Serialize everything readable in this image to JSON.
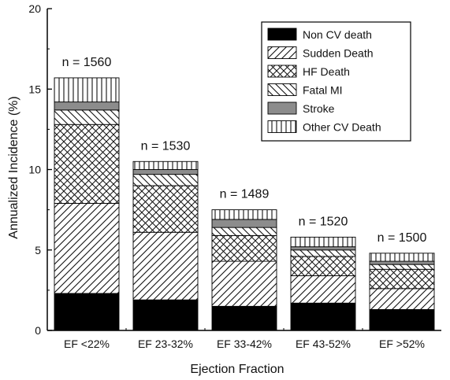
{
  "chart_data": {
    "type": "bar",
    "stacked": true,
    "title": "",
    "xlabel": "Ejection Fraction",
    "ylabel": "Annualized Incidence (%)",
    "ylim": [
      0,
      20
    ],
    "yticks": [
      0,
      5,
      10,
      15,
      20
    ],
    "categories": [
      "EF <22%",
      "EF 23-32%",
      "EF 33-42%",
      "EF 43-52%",
      "EF >52%"
    ],
    "annotations": [
      "n = 1560",
      "n = 1530",
      "n = 1489",
      "n = 1520",
      "n = 1500"
    ],
    "legend_position": "top-right",
    "grid": false,
    "series": [
      {
        "name": "Non CV death",
        "pattern": "solid-black",
        "values": [
          2.3,
          1.9,
          1.5,
          1.7,
          1.3
        ]
      },
      {
        "name": "Sudden Death",
        "pattern": "diagonal-hatch",
        "values": [
          5.6,
          4.2,
          2.8,
          1.7,
          1.3
        ]
      },
      {
        "name": "HF Death",
        "pattern": "cross-hatch",
        "values": [
          4.9,
          2.9,
          1.6,
          1.2,
          1.2
        ]
      },
      {
        "name": "Fatal MI",
        "pattern": "back-diagonal-hatch",
        "values": [
          0.9,
          0.7,
          0.5,
          0.4,
          0.3
        ]
      },
      {
        "name": "Stroke",
        "pattern": "solid-gray",
        "values": [
          0.5,
          0.3,
          0.5,
          0.2,
          0.2
        ]
      },
      {
        "name": "Other CV Death",
        "pattern": "vertical-lines",
        "values": [
          1.5,
          0.5,
          0.6,
          0.6,
          0.5
        ]
      }
    ]
  }
}
